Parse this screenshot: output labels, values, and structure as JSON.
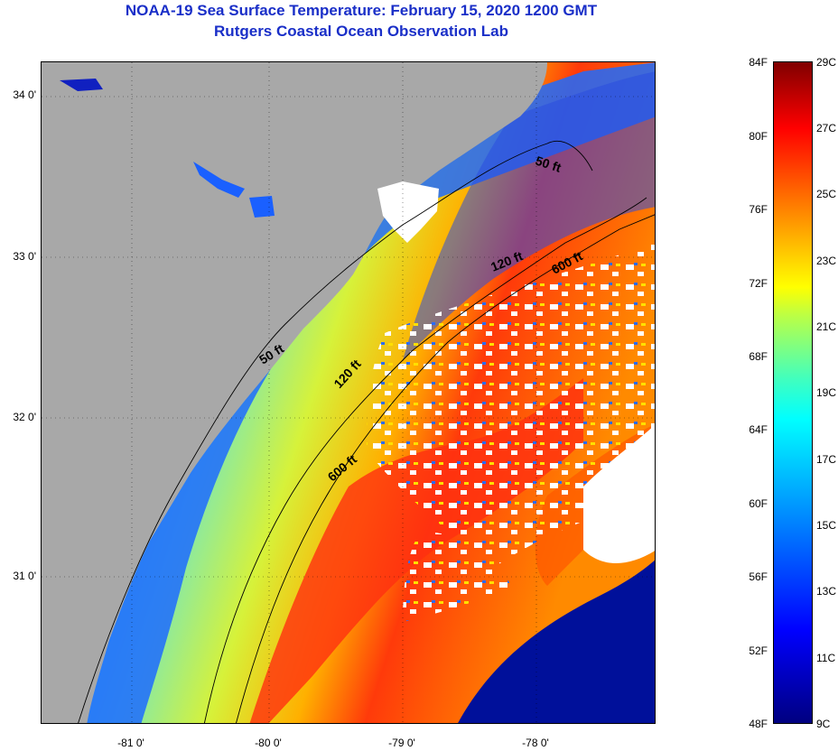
{
  "title_line1": "NOAA-19 Sea Surface Temperature:  February 15, 2020 1200 GMT",
  "title_line2": "Rutgers Coastal Ocean Observation Lab",
  "latitude_labels": [
    {
      "text": "34 0'",
      "value": 34.0
    },
    {
      "text": "33 0'",
      "value": 33.0
    },
    {
      "text": "32 0'",
      "value": 32.0
    },
    {
      "text": "31 0'",
      "value": 31.0
    }
  ],
  "longitude_labels": [
    {
      "text": "-81 0'",
      "value": -81.0
    },
    {
      "text": "-80 0'",
      "value": -80.0
    },
    {
      "text": "-79 0'",
      "value": -79.0
    },
    {
      "text": "-78 0'",
      "value": -78.0
    }
  ],
  "isobath_labels": [
    {
      "text": "50 ft"
    },
    {
      "text": "120 ft"
    },
    {
      "text": "600 ft"
    },
    {
      "text": "50 ft"
    },
    {
      "text": "120 ft"
    },
    {
      "text": "600 ft"
    }
  ],
  "colorbar": {
    "fahrenheit_labels": [
      "84F",
      "80F",
      "76F",
      "72F",
      "68F",
      "64F",
      "60F",
      "56F",
      "52F",
      "48F"
    ],
    "celsius_labels": [
      "29C",
      "27C",
      "25C",
      "23C",
      "21C",
      "19C",
      "17C",
      "15C",
      "13C",
      "11C",
      "9C"
    ],
    "range_c": [
      9,
      29
    ]
  },
  "colors": {
    "land": "#a8a8a8",
    "cloud": "#ffffff",
    "title": "#1a2fc8"
  }
}
